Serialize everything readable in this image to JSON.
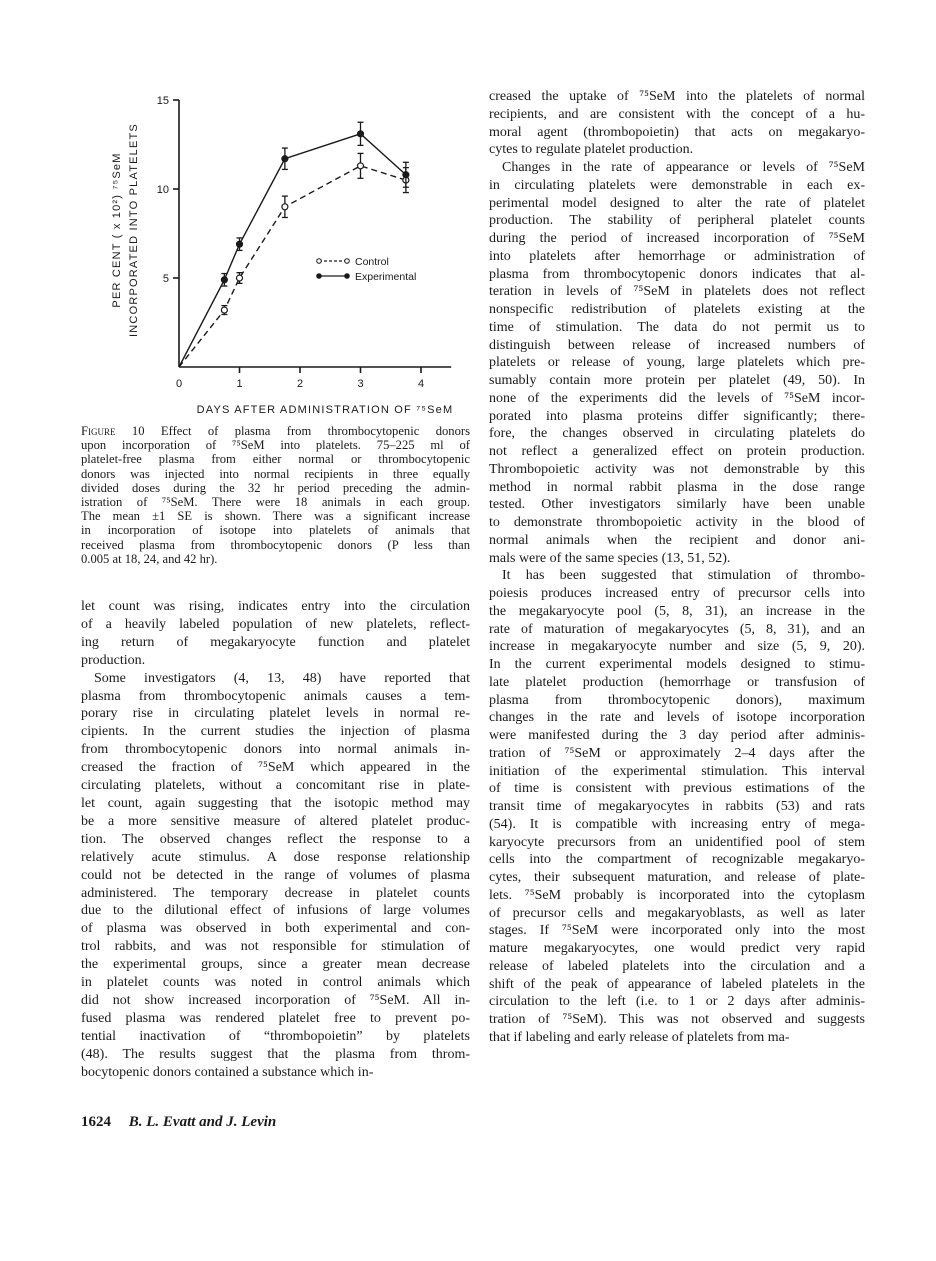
{
  "chart_data": {
    "type": "line",
    "xlabel": "DAYS AFTER ADMINISTRATION OF ⁷⁵SeM",
    "ylabel_lines": [
      "PER CENT ( x 10²) ⁷⁵SeM",
      "INCORPORATED INTO PLATELETS"
    ],
    "x_ticks": [
      "0",
      "1",
      "2",
      "3",
      "4"
    ],
    "y_ticks": [
      "5",
      "10",
      "15"
    ],
    "xlim": [
      0,
      4.5
    ],
    "ylim": [
      0,
      15
    ],
    "grid": false,
    "legend_placement": "center-right",
    "series": [
      {
        "name": "Control",
        "style": "dashed",
        "marker": "open-circle",
        "x": [
          0,
          0.75,
          1,
          1.75,
          3,
          3.75
        ],
        "y": [
          0,
          3.2,
          5.0,
          9.0,
          11.3,
          10.5
        ],
        "se": [
          0,
          0.25,
          0.3,
          0.6,
          0.7,
          0.7
        ]
      },
      {
        "name": "Experimental",
        "style": "solid",
        "marker": "filled-circle",
        "x": [
          0,
          0.75,
          1,
          1.75,
          3,
          3.75
        ],
        "y": [
          0,
          4.9,
          6.9,
          11.7,
          13.1,
          10.8
        ],
        "se": [
          0,
          0.35,
          0.35,
          0.6,
          0.65,
          0.7
        ]
      }
    ]
  },
  "caption": {
    "label": "Figure 10",
    "lines": [
      "Effect of plasma from thrombocytopenic donors",
      "upon incorporation of ⁷⁵SeM into platelets. 75–225 ml of",
      "platelet-free plasma from either normal or thrombocytopenic",
      "donors was injected into normal recipients in three equally",
      "divided doses during the 32 hr period preceding the admin-",
      "istration of ⁷⁵SeM. There were 18 animals in each group.",
      "The mean ±1 SE is shown. There was a significant increase",
      "in incorporation of isotope into platelets of animals that",
      "received plasma from thrombocytopenic donors (P less than",
      "0.005 at 18, 24, and 42 hr)."
    ]
  },
  "left_column": [
    [
      "let count was rising, indicates entry into the circulation",
      "of a heavily labeled population of new platelets, reflect-",
      "ing return of megakaryocyte function and platelet",
      "production."
    ],
    [
      "Some investigators (4, 13, 48) have reported that",
      "plasma from thrombocytopenic animals causes a tem-",
      "porary rise in circulating platelet levels in normal re-",
      "cipients. In the current studies the injection of plasma",
      "from thrombocytopenic donors into normal animals in-",
      "creased the fraction of ⁷⁵SeM which appeared in the",
      "circulating platelets, without a concomitant rise in plate-",
      "let count, again suggesting that the isotopic method may",
      "be a more sensitive measure of altered platelet produc-",
      "tion. The observed changes reflect the response to a",
      "relatively acute stimulus. A dose response relationship",
      "could not be detected in the range of volumes of plasma",
      "administered. The temporary decrease in platelet counts",
      "due to the dilutional effect of infusions of large volumes",
      "of plasma was observed in both experimental and con-",
      "trol rabbits, and was not responsible for stimulation of",
      "the experimental groups, since a greater mean decrease",
      "in platelet counts was noted in control animals which",
      "did not show increased incorporation of ⁷⁵SeM. All in-",
      "fused plasma was rendered platelet free to prevent po-",
      "tential inactivation of “thrombopoietin” by platelets",
      "(48). The results suggest that the plasma from throm-",
      "bocytopenic donors contained a substance which in-"
    ]
  ],
  "right_column": [
    [
      "creased the uptake of ⁷⁵SeM into the platelets of normal",
      "recipients, and are consistent with the concept of a hu-",
      "moral agent (thrombopoietin) that acts on megakaryo-",
      "cytes to regulate platelet production."
    ],
    [
      "Changes in the rate of appearance or levels of ⁷⁵SeM",
      "in circulating platelets were demonstrable in each ex-",
      "perimental model designed to alter the rate of platelet",
      "production. The stability of peripheral platelet counts",
      "during the period of increased incorporation of ⁷⁵SeM",
      "into platelets after hemorrhage or administration of",
      "plasma from thrombocytopenic donors indicates that al-",
      "teration in levels of ⁷⁵SeM in platelets does not reflect",
      "nonspecific redistribution of platelets existing at the",
      "time of stimulation. The data do not permit us to",
      "distinguish between release of increased numbers of",
      "platelets or release of young, large platelets which pre-",
      "sumably contain more protein per platelet (49, 50). In",
      "none of the experiments did the levels of ⁷⁵SeM incor-",
      "porated into plasma proteins differ significantly; there-",
      "fore, the changes observed in circulating platelets do",
      "not reflect a generalized effect on protein production.",
      "Thrombopoietic activity was not demonstrable by this",
      "method in normal rabbit plasma in the dose range",
      "tested. Other investigators similarly have been unable",
      "to demonstrate thrombopoietic activity in the blood of",
      "normal animals when the recipient and donor ani-",
      "mals were of the same species (13, 51, 52)."
    ],
    [
      "It has been suggested that stimulation of thrombo-",
      "poiesis produces increased entry of precursor cells into",
      "the megakaryocyte pool (5, 8, 31), an increase in the",
      "rate of maturation of megakaryocytes (5, 8, 31), and an",
      "increase in megakaryocyte number and size (5, 9, 20).",
      "In the current experimental models designed to stimu-",
      "late platelet production (hemorrhage or transfusion of",
      "plasma from thrombocytopenic donors), maximum",
      "changes in the rate and levels of isotope incorporation",
      "were manifested during the 3 day period after adminis-",
      "tration of ⁷⁵SeM or approximately 2–4 days after the",
      "initiation of the experimental stimulation. This interval",
      "of time is consistent with previous estimations of the",
      "transit time of megakaryocytes in rabbits (53) and rats",
      "(54). It is compatible with increasing entry of mega-",
      "karyocyte precursors from an unidentified pool of stem",
      "cells into the compartment of recognizable megakaryo-",
      "cytes, their subsequent maturation, and release of plate-",
      "lets. ⁷⁵SeM probably is incorporated into the cytoplasm",
      "of precursor cells and megakaryoblasts, as well as later",
      "stages. If ⁷⁵SeM were incorporated only into the most",
      "mature megakaryocytes, one would predict very rapid",
      "release of labeled platelets into the circulation and a",
      "shift of the peak of appearance of labeled platelets in the",
      "circulation to the left (i.e. to 1 or 2 days after adminis-",
      "tration of ⁷⁵SeM). This was not observed and suggests",
      "that if labeling and early release of platelets from ma-"
    ]
  ],
  "footer": {
    "page_number": "1624",
    "authors": "B. L. Evatt and J. Levin"
  }
}
